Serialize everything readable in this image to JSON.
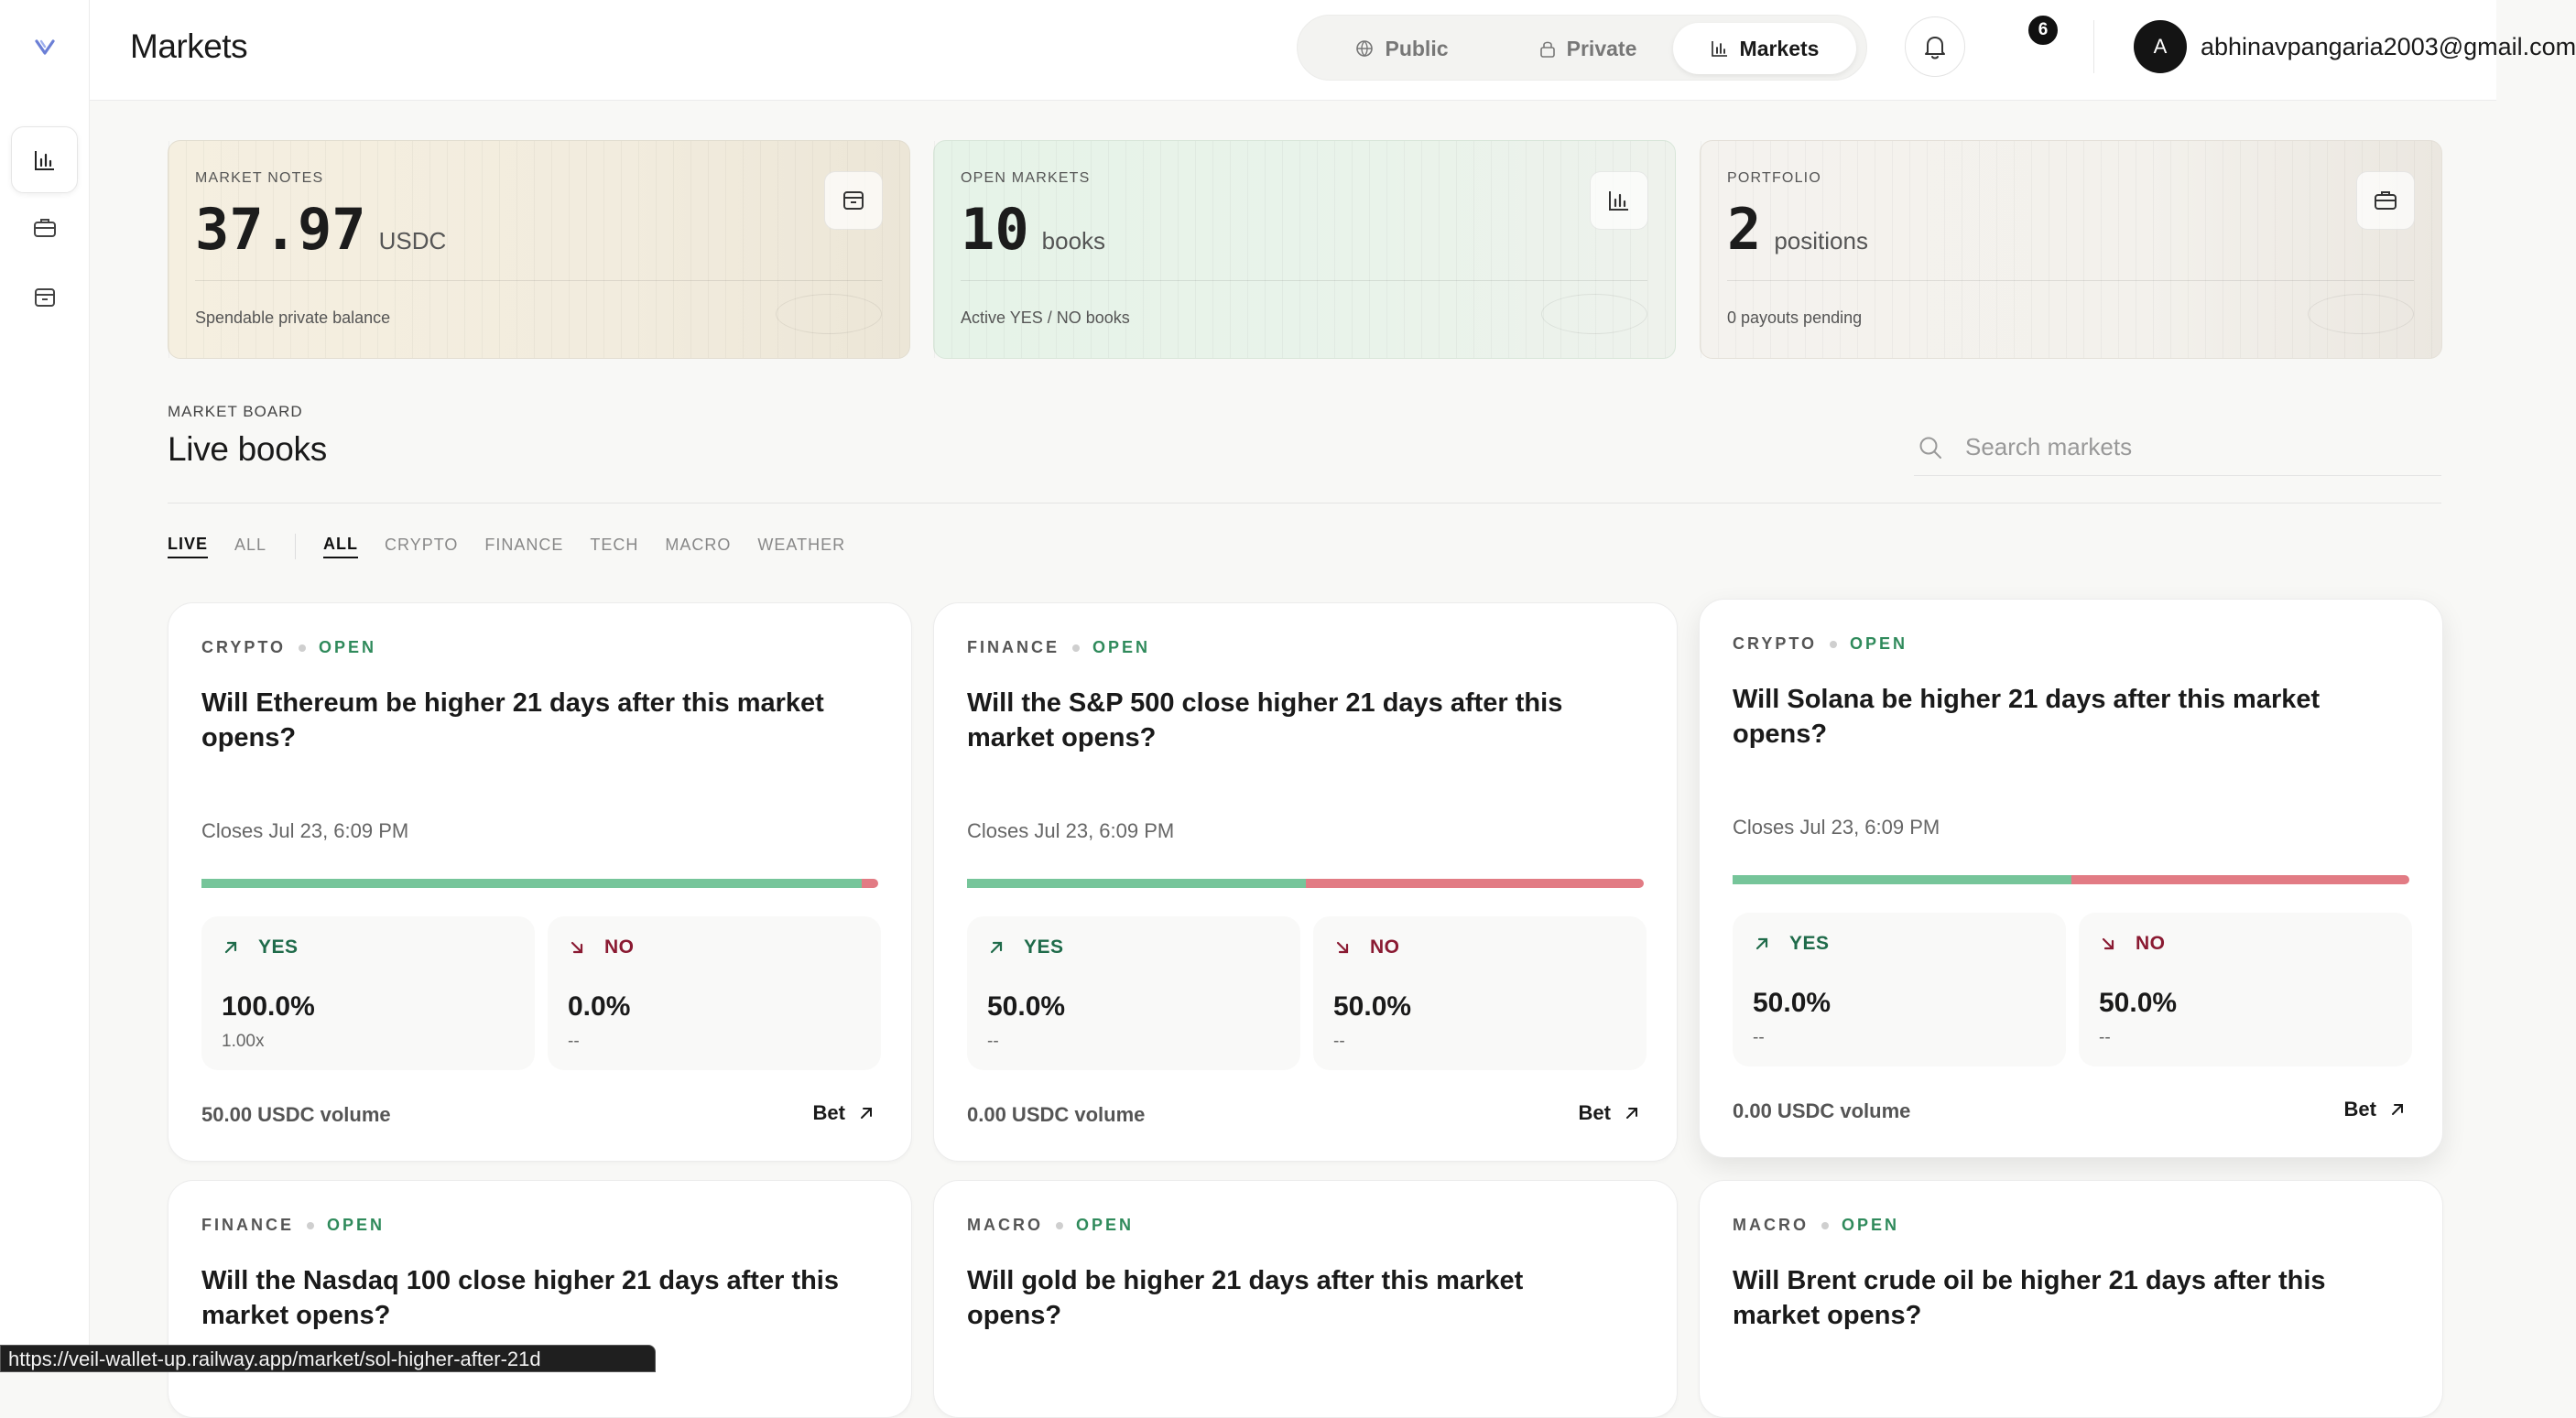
{
  "header": {
    "title": "Markets",
    "tabs": [
      {
        "label": "Public",
        "icon": "globe-icon"
      },
      {
        "label": "Private",
        "icon": "lock-icon"
      },
      {
        "label": "Markets",
        "icon": "chart-icon"
      }
    ],
    "notifications_count": "6",
    "avatar_initial": "A",
    "email": "abhinavpangaria2003@gmail.com"
  },
  "sidebar": {
    "items": [
      {
        "name": "markets",
        "icon": "chart-icon",
        "active": true
      },
      {
        "name": "portfolio",
        "icon": "briefcase-icon",
        "active": false
      },
      {
        "name": "wallet",
        "icon": "wallet-icon",
        "active": false
      }
    ]
  },
  "stats": [
    {
      "label": "MARKET NOTES",
      "value": "37.97",
      "unit": "USDC",
      "sub": "Spendable private balance",
      "icon": "wallet-icon"
    },
    {
      "label": "OPEN MARKETS",
      "value": "10",
      "unit": "books",
      "sub": "Active YES / NO books",
      "icon": "chart-icon"
    },
    {
      "label": "PORTFOLIO",
      "value": "2",
      "unit": "positions",
      "sub": "0 payouts pending",
      "icon": "briefcase-icon"
    }
  ],
  "board": {
    "kicker": "MARKET BOARD",
    "title": "Live books",
    "search_placeholder": "Search markets",
    "filters_status": [
      "LIVE",
      "ALL"
    ],
    "filters_category": [
      "ALL",
      "CRYPTO",
      "FINANCE",
      "TECH",
      "MACRO",
      "WEATHER"
    ]
  },
  "markets": [
    {
      "category": "CRYPTO",
      "status": "OPEN",
      "question": "Will Ethereum be higher 21 days after this market opens?",
      "closes": "Closes Jul 23, 6:09 PM",
      "yes_fraction": 0.975,
      "yes_pct": "100.0%",
      "yes_sub": "1.00x",
      "no_pct": "0.0%",
      "no_sub": "--",
      "volume": "50.00 USDC volume",
      "bet_label": "Bet"
    },
    {
      "category": "FINANCE",
      "status": "OPEN",
      "question": "Will the S&P 500 close higher 21 days after this market opens?",
      "closes": "Closes Jul 23, 6:09 PM",
      "yes_fraction": 0.5,
      "yes_pct": "50.0%",
      "yes_sub": "--",
      "no_pct": "50.0%",
      "no_sub": "--",
      "volume": "0.00 USDC volume",
      "bet_label": "Bet"
    },
    {
      "category": "CRYPTO",
      "status": "OPEN",
      "question": "Will Solana be higher 21 days after this market opens?",
      "closes": "Closes Jul 23, 6:09 PM",
      "yes_fraction": 0.5,
      "yes_pct": "50.0%",
      "yes_sub": "--",
      "no_pct": "50.0%",
      "no_sub": "--",
      "volume": "0.00 USDC volume",
      "bet_label": "Bet"
    },
    {
      "category": "FINANCE",
      "status": "OPEN",
      "question": "Will the Nasdaq 100 close higher 21 days after this market opens?"
    },
    {
      "category": "MACRO",
      "status": "OPEN",
      "question": "Will gold be higher 21 days after this market opens?"
    },
    {
      "category": "MACRO",
      "status": "OPEN",
      "question": "Will Brent crude oil be higher 21 days after this market opens?"
    }
  ],
  "option_labels": {
    "yes": "YES",
    "no": "NO"
  },
  "status_url": "https://veil-wallet-up.railway.app/market/sol-higher-after-21d",
  "colors": {
    "yes": "#76c59a",
    "no": "#e27b84",
    "open": "#2f8a5b"
  }
}
